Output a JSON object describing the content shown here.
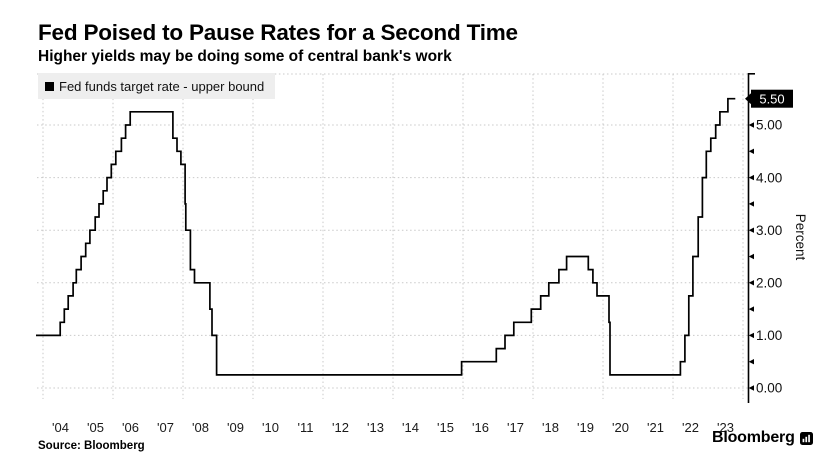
{
  "header": {
    "title": "Fed Poised to Pause Rates for a Second Time",
    "subtitle": "Higher yields may be doing some of central bank's work"
  },
  "legend": {
    "label": "Fed funds target rate - upper bound"
  },
  "chart_data": {
    "type": "line",
    "line_style": "step-after",
    "title": "Fed Poised to Pause Rates for a Second Time",
    "subtitle": "Higher yields may be doing some of central bank's work",
    "legend_position": "top-left",
    "axis_side": "right",
    "grid": true,
    "x_range": [
      2003.8,
      2024.1
    ],
    "y_range": [
      0,
      6
    ],
    "x_tick_years": [
      2004,
      2005,
      2006,
      2007,
      2008,
      2009,
      2010,
      2011,
      2012,
      2013,
      2014,
      2015,
      2016,
      2017,
      2018,
      2019,
      2020,
      2021,
      2022,
      2023
    ],
    "x_tick_labels": [
      "'04",
      "'05",
      "'06",
      "'07",
      "'08",
      "'09",
      "'10",
      "'11",
      "'12",
      "'13",
      "'14",
      "'15",
      "'16",
      "'17",
      "'18",
      "'19",
      "'20",
      "'21",
      "'22",
      "'23"
    ],
    "gridline_years": [
      2004,
      2006,
      2008,
      2010,
      2012,
      2014,
      2016,
      2018,
      2020,
      2022,
      2024
    ],
    "y_tick_values": [
      0,
      1,
      2,
      3,
      4,
      5
    ],
    "y_tick_labels": [
      "0.00",
      "1.00",
      "2.00",
      "3.00",
      "4.00",
      "5.00"
    ],
    "y_minor_tick_values": [
      0.5,
      1.5,
      2.5,
      3.5,
      4.5
    ],
    "y_axis_label": "Percent",
    "current_value": 5.5,
    "current_value_label": "5.50",
    "series": [
      {
        "name": "Fed funds target rate - upper bound",
        "color": "#000000",
        "end_x": 2023.78,
        "points": [
          [
            2003.8,
            1.0
          ],
          [
            2004.49,
            1.25
          ],
          [
            2004.61,
            1.5
          ],
          [
            2004.72,
            1.75
          ],
          [
            2004.86,
            2.0
          ],
          [
            2004.95,
            2.25
          ],
          [
            2005.09,
            2.5
          ],
          [
            2005.22,
            2.75
          ],
          [
            2005.34,
            3.0
          ],
          [
            2005.49,
            3.25
          ],
          [
            2005.6,
            3.5
          ],
          [
            2005.72,
            3.75
          ],
          [
            2005.83,
            4.0
          ],
          [
            2005.95,
            4.25
          ],
          [
            2006.08,
            4.5
          ],
          [
            2006.24,
            4.75
          ],
          [
            2006.36,
            5.0
          ],
          [
            2006.49,
            5.25
          ],
          [
            2007.71,
            4.75
          ],
          [
            2007.83,
            4.5
          ],
          [
            2007.94,
            4.25
          ],
          [
            2008.06,
            3.5
          ],
          [
            2008.08,
            3.0
          ],
          [
            2008.21,
            2.25
          ],
          [
            2008.33,
            2.0
          ],
          [
            2008.77,
            1.5
          ],
          [
            2008.83,
            1.0
          ],
          [
            2008.96,
            0.25
          ],
          [
            2015.96,
            0.5
          ],
          [
            2016.95,
            0.75
          ],
          [
            2017.2,
            1.0
          ],
          [
            2017.45,
            1.25
          ],
          [
            2017.95,
            1.5
          ],
          [
            2018.22,
            1.75
          ],
          [
            2018.45,
            2.0
          ],
          [
            2018.74,
            2.25
          ],
          [
            2018.96,
            2.5
          ],
          [
            2019.58,
            2.25
          ],
          [
            2019.71,
            2.0
          ],
          [
            2019.83,
            1.75
          ],
          [
            2020.17,
            1.25
          ],
          [
            2020.2,
            0.25
          ],
          [
            2022.21,
            0.5
          ],
          [
            2022.34,
            1.0
          ],
          [
            2022.45,
            1.75
          ],
          [
            2022.57,
            2.5
          ],
          [
            2022.72,
            3.25
          ],
          [
            2022.84,
            4.0
          ],
          [
            2022.95,
            4.5
          ],
          [
            2023.08,
            4.75
          ],
          [
            2023.22,
            5.0
          ],
          [
            2023.34,
            5.25
          ],
          [
            2023.57,
            5.5
          ]
        ]
      }
    ]
  },
  "footer": {
    "source": "Source: Bloomberg",
    "brand": "Bloomberg"
  },
  "colors": {
    "line": "#000000",
    "grid": "#c9c9c9",
    "legend_bg": "#eeeeee",
    "badge_bg": "#000000",
    "badge_text": "#ffffff",
    "text": "#000000"
  }
}
